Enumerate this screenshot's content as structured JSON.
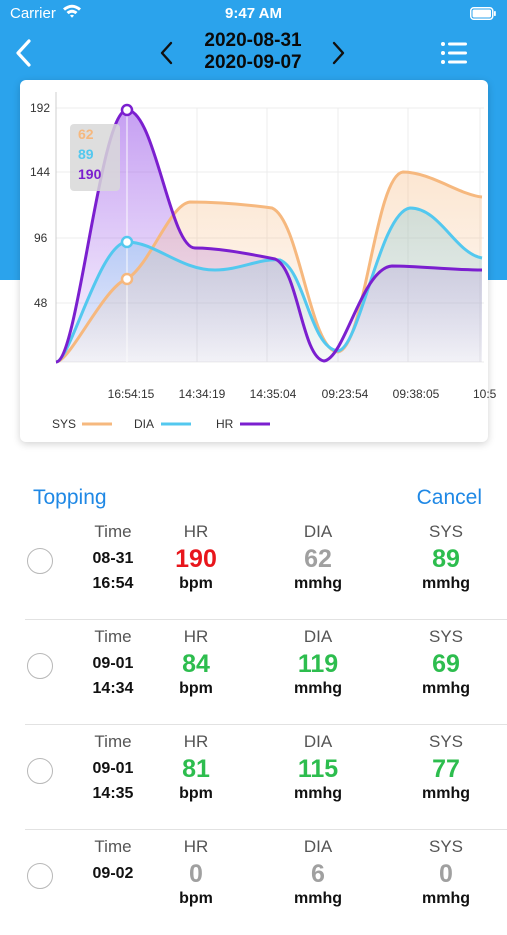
{
  "status": {
    "carrier": "Carrier",
    "time": "9:47 AM"
  },
  "nav": {
    "date_start": "2020-08-31",
    "date_end": "2020-09-07"
  },
  "chart_data": {
    "type": "area",
    "categories": [
      "16:54:15",
      "14:34:19",
      "14:35:04",
      "09:23:54",
      "09:38:05",
      "10:5"
    ],
    "y_ticks": [
      48,
      96,
      144,
      192
    ],
    "ylim": [
      0,
      200
    ],
    "grid": true,
    "legend_position": "bottom-left",
    "series": [
      {
        "name": "SYS",
        "color": "#f6b87e"
      },
      {
        "name": "DIA",
        "color": "#53c8ef"
      },
      {
        "name": "HR",
        "color": "#7b1fcf"
      }
    ],
    "tooltip": {
      "values": [
        "62",
        "89",
        "190"
      ]
    }
  },
  "actions": {
    "topping": "Topping",
    "cancel": "Cancel"
  },
  "columns": {
    "time": "Time",
    "hr": "HR",
    "dia": "DIA",
    "sys": "SYS"
  },
  "units": {
    "hr": "bpm",
    "pressure": "mmhg"
  },
  "colors": {
    "high": "#e8161c",
    "normal": "#2dbd4e",
    "muted": "#a0a0a0",
    "accent": "#2ba3ec"
  },
  "records": [
    {
      "date": "08-31",
      "time": "16:54",
      "hr": "190",
      "dia": "62",
      "sys": "89"
    },
    {
      "date": "09-01",
      "time": "14:34",
      "hr": "84",
      "dia": "119",
      "sys": "69"
    },
    {
      "date": "09-01",
      "time": "14:35",
      "hr": "81",
      "dia": "115",
      "sys": "77"
    },
    {
      "date": "09-02",
      "time": "",
      "hr": "0",
      "dia": "6",
      "sys": "0"
    }
  ]
}
